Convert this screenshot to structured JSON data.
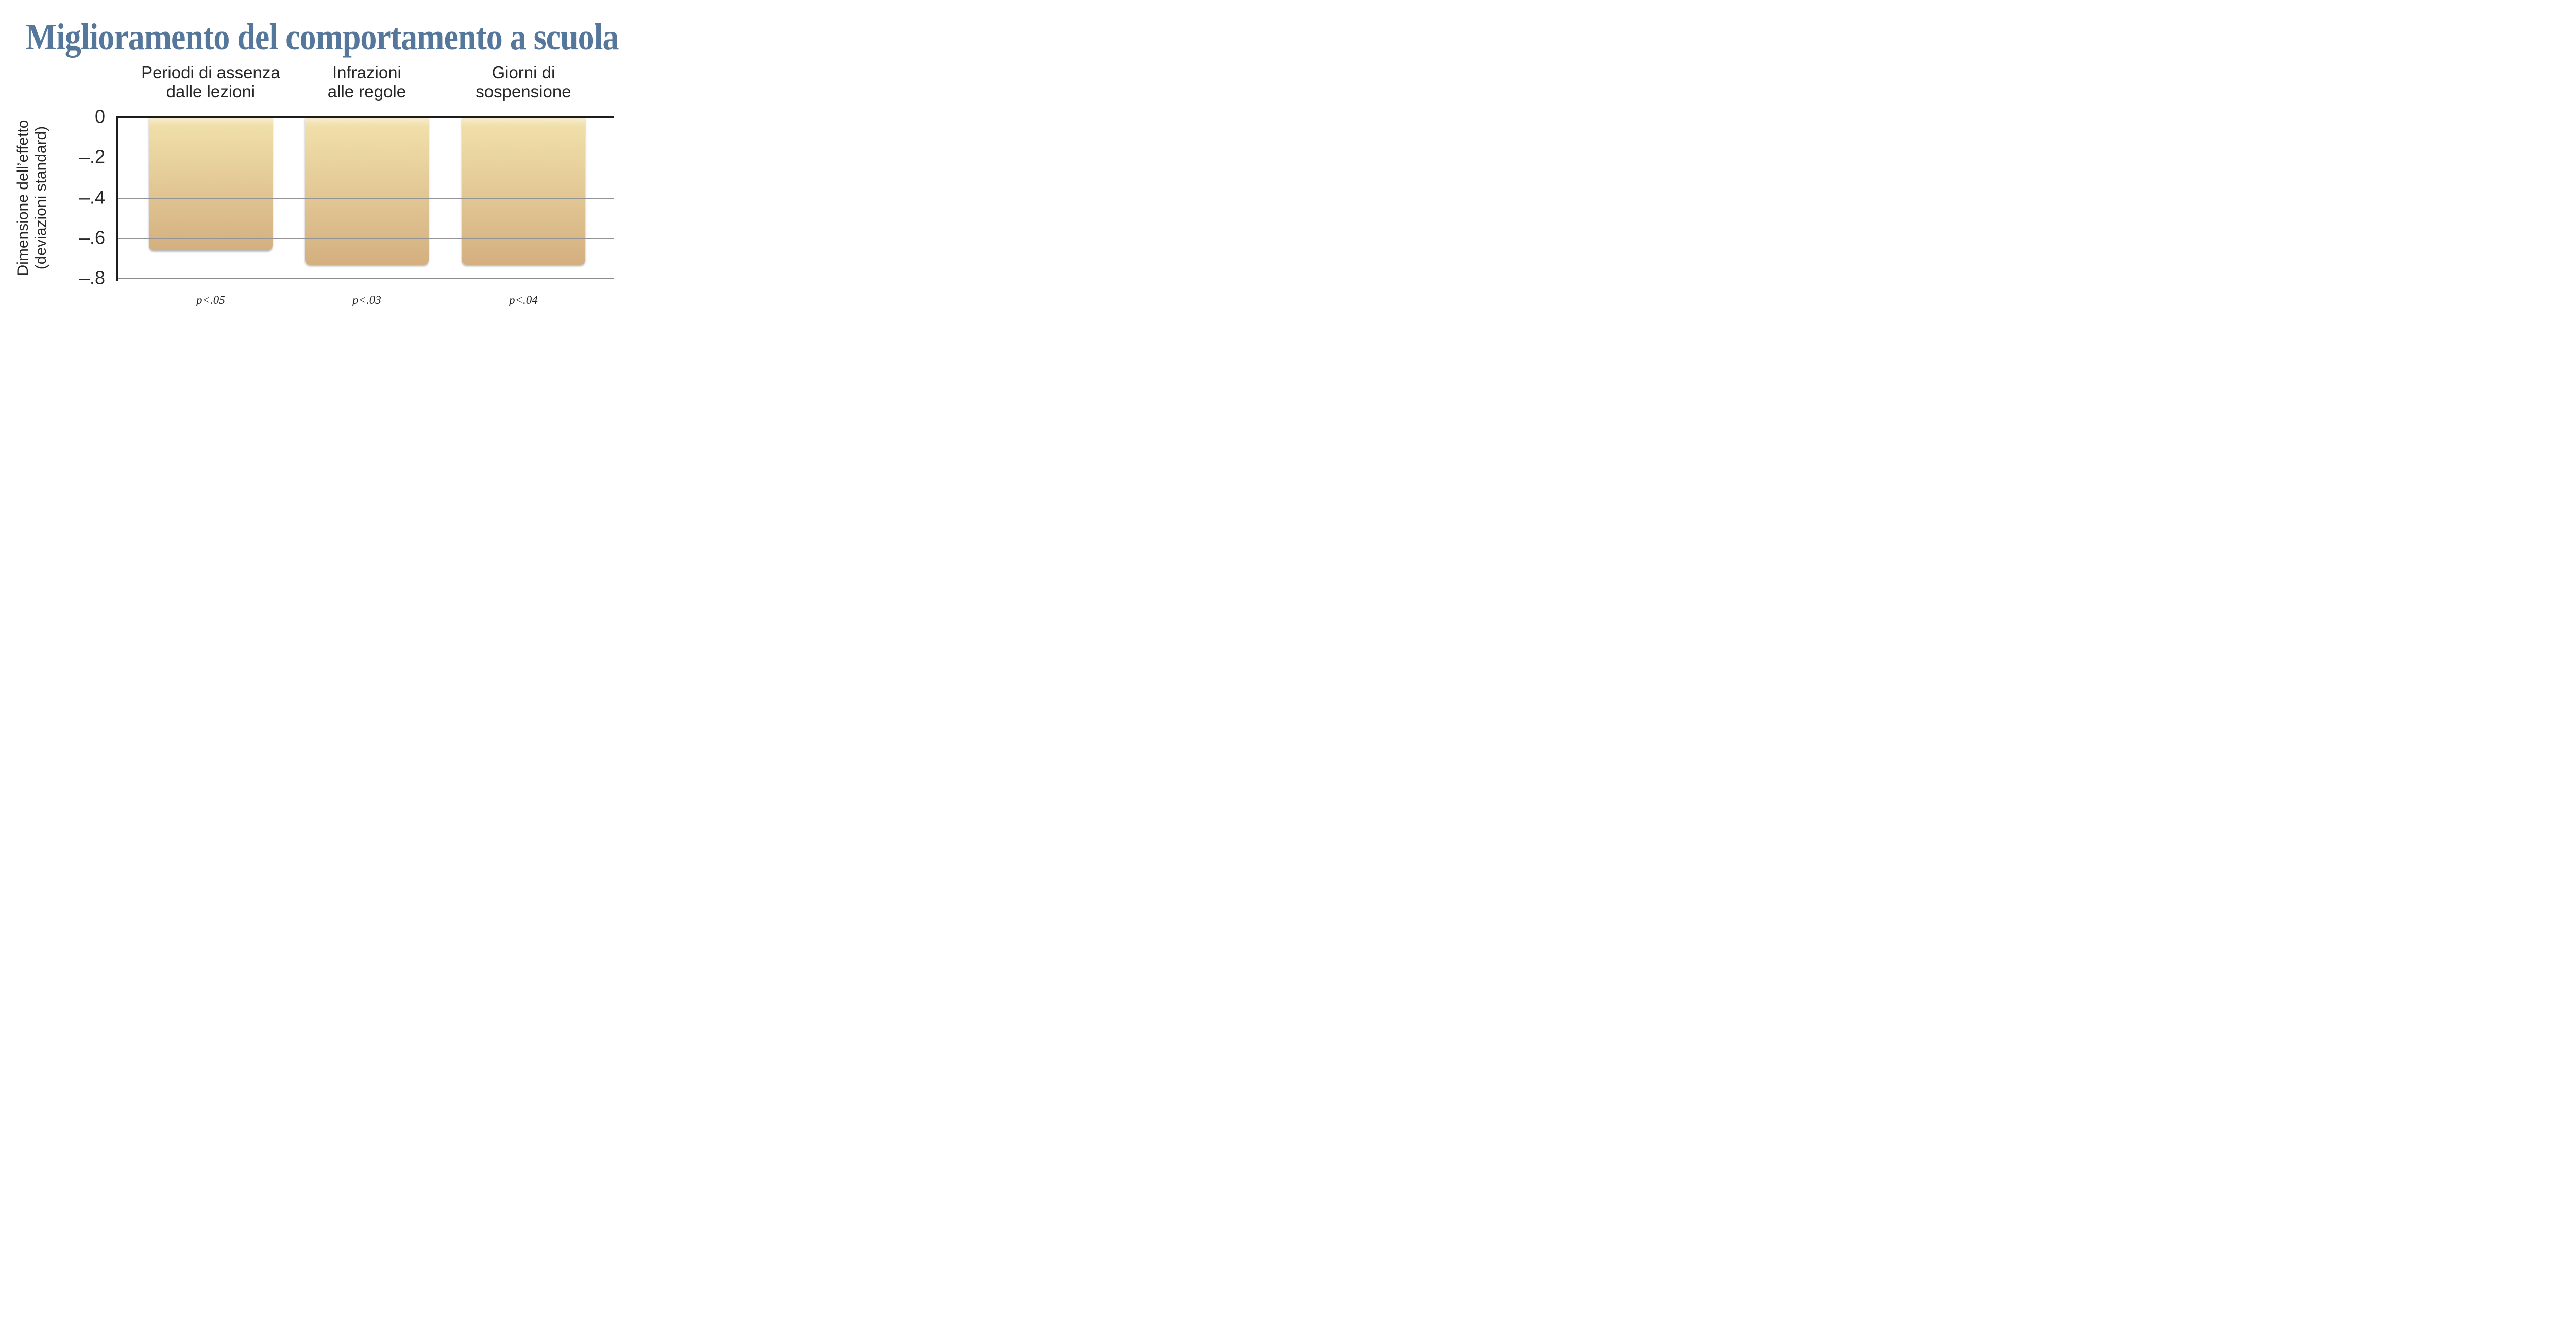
{
  "chart_data": {
    "type": "bar",
    "title": "Miglioramento del comportamento a scuola",
    "title_color": "#54779B",
    "categories": [
      "Periodi di assenza\ndalle lezioni",
      "Infrazioni\nalle regole",
      "Giorni di\nsospensione"
    ],
    "values": [
      -0.66,
      -0.73,
      -0.73
    ],
    "p_annotations": [
      "p<.05",
      "p<.03",
      "p<.04"
    ],
    "ylabel": "Dimensione dell’effetto (deviazioni standard)",
    "ylabel_lines": [
      "Dimensione dell’effetto",
      "(deviazioni standard)"
    ],
    "yticks": [
      0,
      -0.2,
      -0.4,
      -0.6,
      -0.8
    ],
    "ytick_labels": [
      "0",
      "–.2",
      "–.4",
      "–.6",
      "–.8"
    ],
    "ylim": [
      -0.8,
      0
    ],
    "grid": "horizontal",
    "legend": "none",
    "bar_color_top": "#F0DFA9",
    "bar_color_bottom": "#D4AF80",
    "axis_color": "#1e1c1a",
    "gridline_color": "#949494"
  }
}
